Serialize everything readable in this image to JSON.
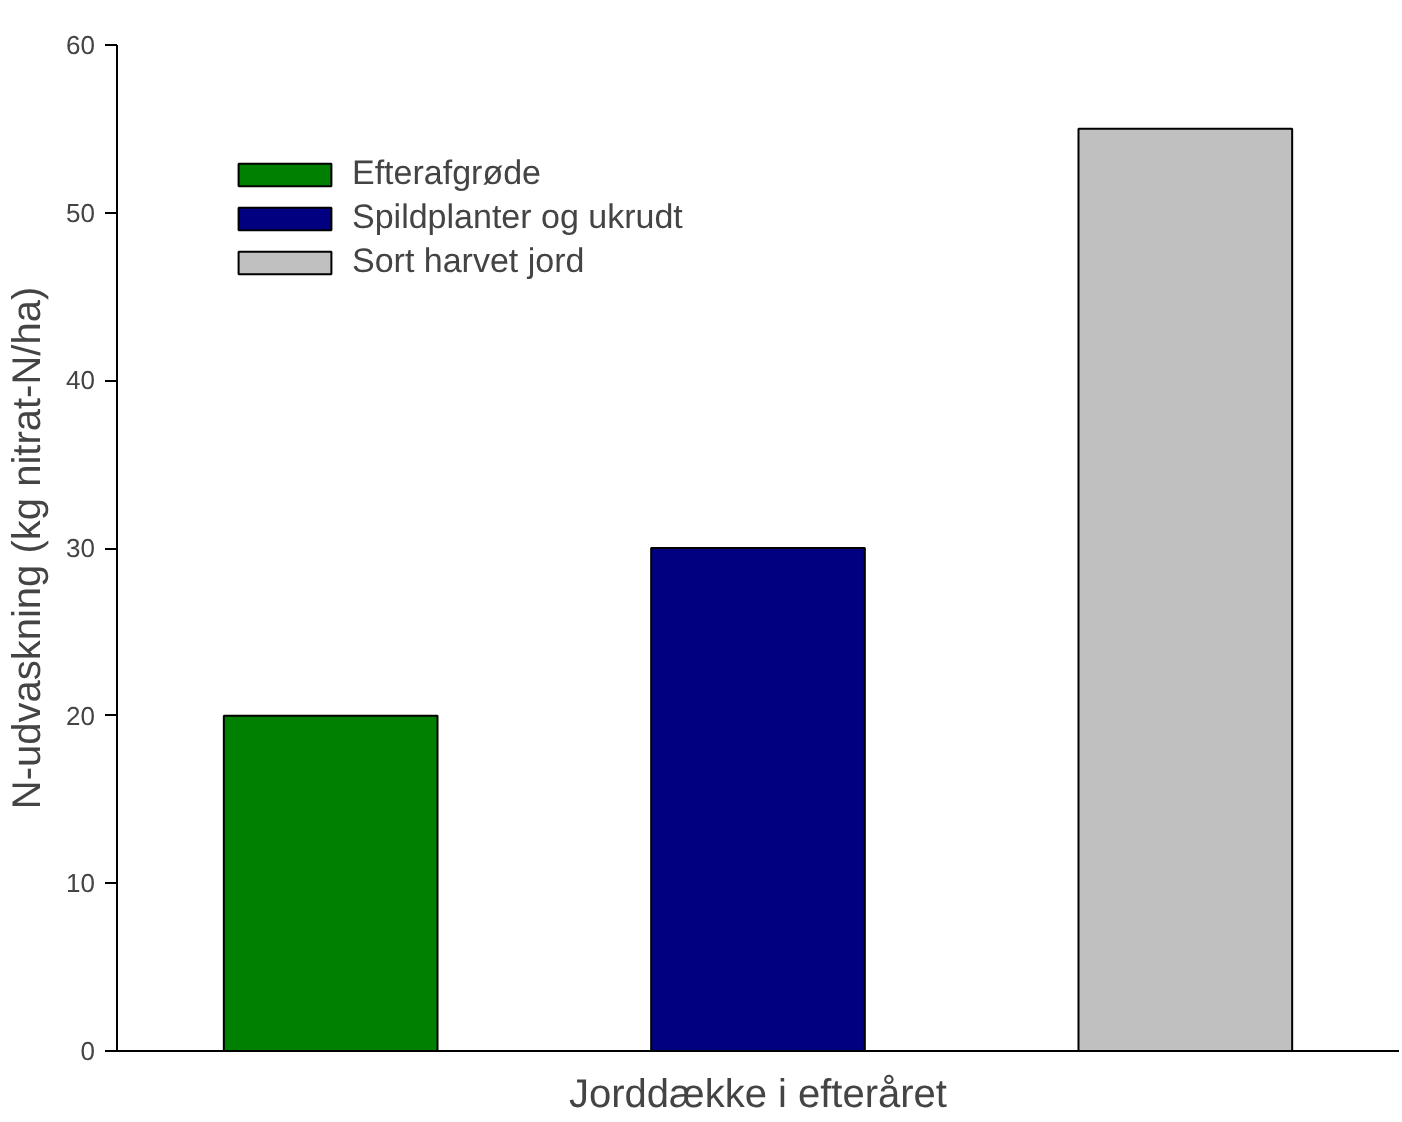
{
  "chart_data": {
    "type": "bar",
    "xlabel": "Jorddække i efteråret",
    "ylabel": "N-udvaskning (kg nitrat-N/ha)",
    "categories": [
      null,
      null,
      null
    ],
    "series": [
      {
        "name": "Efterafgrøde",
        "color": "#008000",
        "values": [
          20,
          null,
          null
        ]
      },
      {
        "name": "Spildplanter og ukrudt",
        "color": "#000080",
        "values": [
          null,
          30,
          null
        ]
      },
      {
        "name": "Sort harvet jord",
        "color": "#c0c0c0",
        "values": [
          null,
          null,
          55
        ]
      }
    ],
    "ylim": [
      0,
      60
    ],
    "yticks": [
      0,
      10,
      20,
      30,
      40,
      50,
      60
    ],
    "grid": false,
    "legend": "top left"
  }
}
